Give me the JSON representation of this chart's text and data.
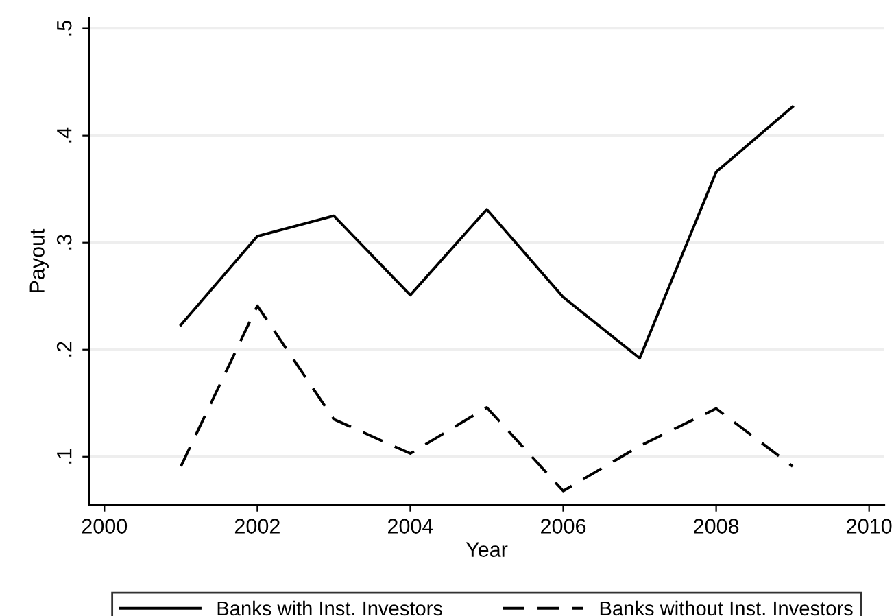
{
  "chart_data": {
    "type": "line",
    "xlabel": "Year",
    "ylabel": "Payout",
    "x": [
      2001,
      2002,
      2003,
      2004,
      2005,
      2006,
      2007,
      2008,
      2009
    ],
    "series": [
      {
        "name": "Banks with Inst. Investors",
        "color": "#000000",
        "line_style": "solid",
        "values": [
          0.223,
          0.306,
          0.325,
          0.251,
          0.331,
          0.249,
          0.192,
          0.366,
          0.427
        ]
      },
      {
        "name": "Banks without Inst. Investors",
        "color": "#000000",
        "line_style": "dashed",
        "values": [
          0.091,
          0.241,
          0.135,
          0.103,
          0.146,
          0.068,
          0.11,
          0.145,
          0.091
        ]
      }
    ],
    "xlim": [
      1999.8,
      2010.2
    ],
    "xticks": [
      2000,
      2002,
      2004,
      2006,
      2008,
      2010
    ],
    "ylim": [
      0.055,
      0.51
    ],
    "yticks": [
      {
        "value": 0.1,
        "label": ".1"
      },
      {
        "value": 0.2,
        "label": ".2"
      },
      {
        "value": 0.3,
        "label": ".3"
      },
      {
        "value": 0.4,
        "label": ".4"
      },
      {
        "value": 0.5,
        "label": ".5"
      }
    ],
    "grid": "y",
    "legend": "bottom",
    "marker": "none"
  }
}
